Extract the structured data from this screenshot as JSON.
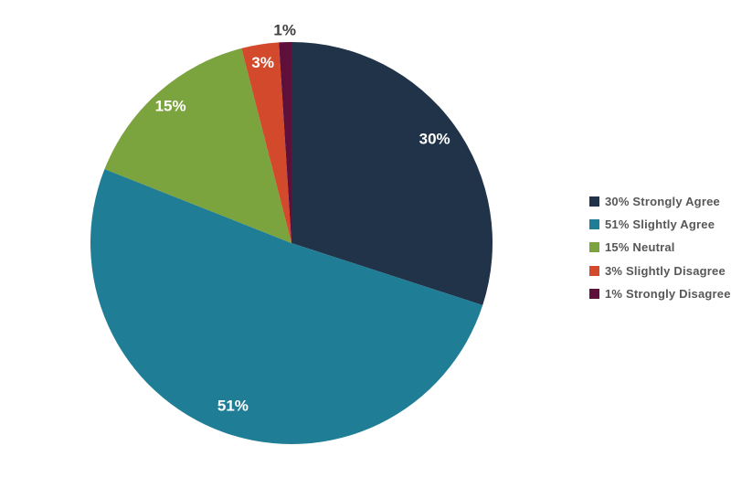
{
  "chart_data": {
    "type": "pie",
    "title": "",
    "legend_position": "right",
    "direction": "clockwise",
    "start_angle_deg": 0,
    "total": 100,
    "slices": [
      {
        "label": "Strongly Agree",
        "value": 30,
        "percent_label": "30%",
        "legend_label": "30% Strongly Agree",
        "color": "#203349"
      },
      {
        "label": "Slightly Agree",
        "value": 51,
        "percent_label": "51%",
        "legend_label": "51% Slightly Agree",
        "color": "#1F7E95"
      },
      {
        "label": "Neutral",
        "value": 15,
        "percent_label": "15%",
        "legend_label": "15% Neutral",
        "color": "#7BA33E"
      },
      {
        "label": "Slightly Disagree",
        "value": 3,
        "percent_label": "3%",
        "legend_label": "3% Slightly Disagree",
        "color": "#D24A2B"
      },
      {
        "label": "Strongly Disagree",
        "value": 1,
        "percent_label": "1%",
        "legend_label": "1% Strongly Disagree",
        "color": "#5E0F3A"
      }
    ],
    "colors": {
      "background": "#FFFFFF",
      "inside_label_text": "#FFFFFF",
      "outside_label_text": "#404040",
      "legend_text": "#575757"
    }
  }
}
